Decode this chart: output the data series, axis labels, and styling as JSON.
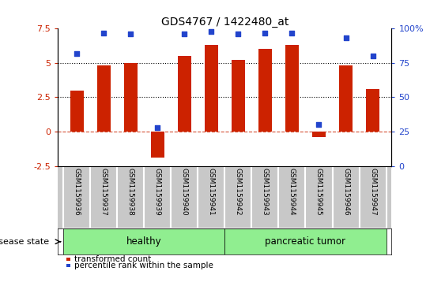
{
  "title": "GDS4767 / 1422480_at",
  "samples": [
    "GSM1159936",
    "GSM1159937",
    "GSM1159938",
    "GSM1159939",
    "GSM1159940",
    "GSM1159941",
    "GSM1159942",
    "GSM1159943",
    "GSM1159944",
    "GSM1159945",
    "GSM1159946",
    "GSM1159947"
  ],
  "transformed_counts": [
    3.0,
    4.8,
    5.0,
    -1.9,
    5.5,
    6.3,
    5.2,
    6.0,
    6.3,
    -0.4,
    4.8,
    3.1
  ],
  "percentile_ranks": [
    82,
    97,
    96,
    28,
    96,
    98,
    96,
    97,
    97,
    30,
    93,
    80
  ],
  "ylim_left": [
    -2.5,
    7.5
  ],
  "ylim_right": [
    0,
    100
  ],
  "yticks_left": [
    -2.5,
    0,
    2.5,
    5.0,
    7.5
  ],
  "yticks_right": [
    0,
    25,
    50,
    75,
    100
  ],
  "hlines_dotted": [
    2.5,
    5.0
  ],
  "hline_dashed": 0,
  "bar_color": "#cc2200",
  "dot_color": "#2244cc",
  "healthy_indices": [
    0,
    1,
    2,
    3,
    4,
    5
  ],
  "tumor_indices": [
    6,
    7,
    8,
    9,
    10,
    11
  ],
  "healthy_label": "healthy",
  "tumor_label": "pancreatic tumor",
  "disease_state_label": "disease state",
  "legend_bar_label": "transformed count",
  "legend_dot_label": "percentile rank within the sample",
  "group_color_light": "#90ee90",
  "tick_area_color": "#c8c8c8",
  "bar_width": 0.5
}
